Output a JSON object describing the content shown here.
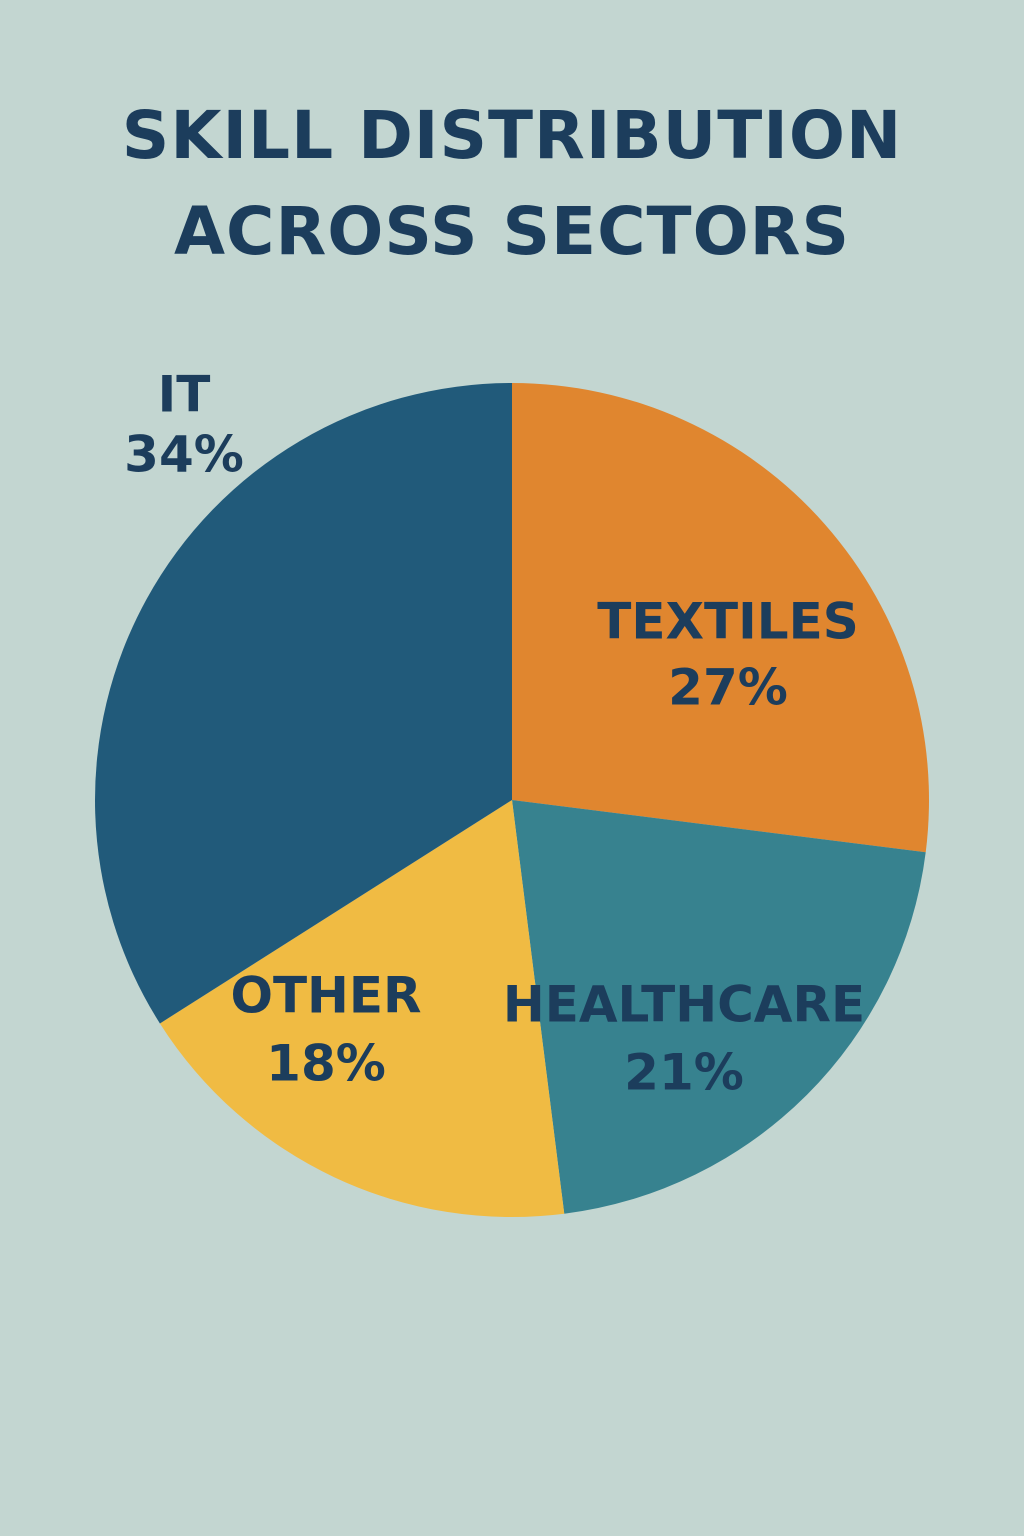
{
  "chart_data": {
    "type": "pie",
    "title": "SKILL DISTRIBUTION ACROSS SECTORS",
    "categories": [
      "TEXTILES",
      "HEALTHCARE",
      "OTHER",
      "IT"
    ],
    "values": [
      27,
      21,
      18,
      34
    ],
    "value_labels": [
      "27%",
      "21%",
      "18%",
      "34%"
    ],
    "colors": [
      "#e0862f",
      "#37828f",
      "#f0bb43",
      "#215a7a"
    ]
  }
}
